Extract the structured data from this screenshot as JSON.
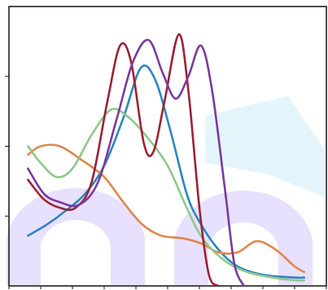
{
  "chart_data": {
    "type": "line",
    "title": "",
    "xlabel": "",
    "ylabel": "",
    "xlim": [
      0,
      10
    ],
    "ylim": [
      0,
      1
    ],
    "grid": false,
    "legend": "none",
    "series": [
      {
        "color": "#2e86c1",
        "points": [
          [
            0.6,
            0.18
          ],
          [
            1.2,
            0.22
          ],
          [
            1.8,
            0.27
          ],
          [
            2.4,
            0.33
          ],
          [
            3.0,
            0.43
          ],
          [
            3.6,
            0.6
          ],
          [
            4.15,
            0.78
          ],
          [
            4.6,
            0.74
          ],
          [
            5.1,
            0.55
          ],
          [
            5.6,
            0.33
          ],
          [
            6.0,
            0.23
          ],
          [
            6.6,
            0.13
          ],
          [
            7.2,
            0.07
          ],
          [
            8.0,
            0.04
          ],
          [
            9.0,
            0.03
          ],
          [
            9.3,
            0.03
          ]
        ]
      },
      {
        "color": "#e0874d",
        "points": [
          [
            0.6,
            0.47
          ],
          [
            1.0,
            0.5
          ],
          [
            1.6,
            0.5
          ],
          [
            2.3,
            0.45
          ],
          [
            3.0,
            0.39
          ],
          [
            3.6,
            0.3
          ],
          [
            4.2,
            0.22
          ],
          [
            4.8,
            0.18
          ],
          [
            5.5,
            0.17
          ],
          [
            6.1,
            0.15
          ],
          [
            6.6,
            0.12
          ],
          [
            7.2,
            0.12
          ],
          [
            7.8,
            0.16
          ],
          [
            8.4,
            0.13
          ],
          [
            9.0,
            0.07
          ],
          [
            9.3,
            0.05
          ]
        ]
      },
      {
        "color": "#8fc88a",
        "points": [
          [
            0.6,
            0.5
          ],
          [
            1.0,
            0.44
          ],
          [
            1.5,
            0.39
          ],
          [
            2.0,
            0.42
          ],
          [
            2.6,
            0.54
          ],
          [
            3.2,
            0.63
          ],
          [
            3.7,
            0.61
          ],
          [
            4.3,
            0.54
          ],
          [
            5.0,
            0.43
          ],
          [
            5.6,
            0.28
          ],
          [
            6.1,
            0.17
          ],
          [
            6.8,
            0.09
          ],
          [
            7.5,
            0.05
          ],
          [
            8.3,
            0.03
          ],
          [
            9.0,
            0.02
          ],
          [
            9.3,
            0.02
          ]
        ]
      },
      {
        "color": "#9b2335",
        "points": [
          [
            0.6,
            0.38
          ],
          [
            1.1,
            0.31
          ],
          [
            1.6,
            0.28
          ],
          [
            2.1,
            0.28
          ],
          [
            2.6,
            0.37
          ],
          [
            3.1,
            0.66
          ],
          [
            3.5,
            0.86
          ],
          [
            3.85,
            0.8
          ],
          [
            4.25,
            0.51
          ],
          [
            4.55,
            0.48
          ],
          [
            4.9,
            0.66
          ],
          [
            5.35,
            0.9
          ],
          [
            5.65,
            0.7
          ],
          [
            6.0,
            0.28
          ],
          [
            6.3,
            0.04
          ],
          [
            6.6,
            0.0
          ]
        ]
      },
      {
        "color": "#7a3b9e",
        "points": [
          [
            0.6,
            0.42
          ],
          [
            1.1,
            0.33
          ],
          [
            1.6,
            0.3
          ],
          [
            2.2,
            0.29
          ],
          [
            2.8,
            0.37
          ],
          [
            3.4,
            0.6
          ],
          [
            3.9,
            0.8
          ],
          [
            4.4,
            0.88
          ],
          [
            4.85,
            0.76
          ],
          [
            5.25,
            0.67
          ],
          [
            5.65,
            0.75
          ],
          [
            6.05,
            0.86
          ],
          [
            6.4,
            0.7
          ],
          [
            6.8,
            0.35
          ],
          [
            7.1,
            0.08
          ],
          [
            7.4,
            0.0
          ]
        ]
      }
    ]
  }
}
